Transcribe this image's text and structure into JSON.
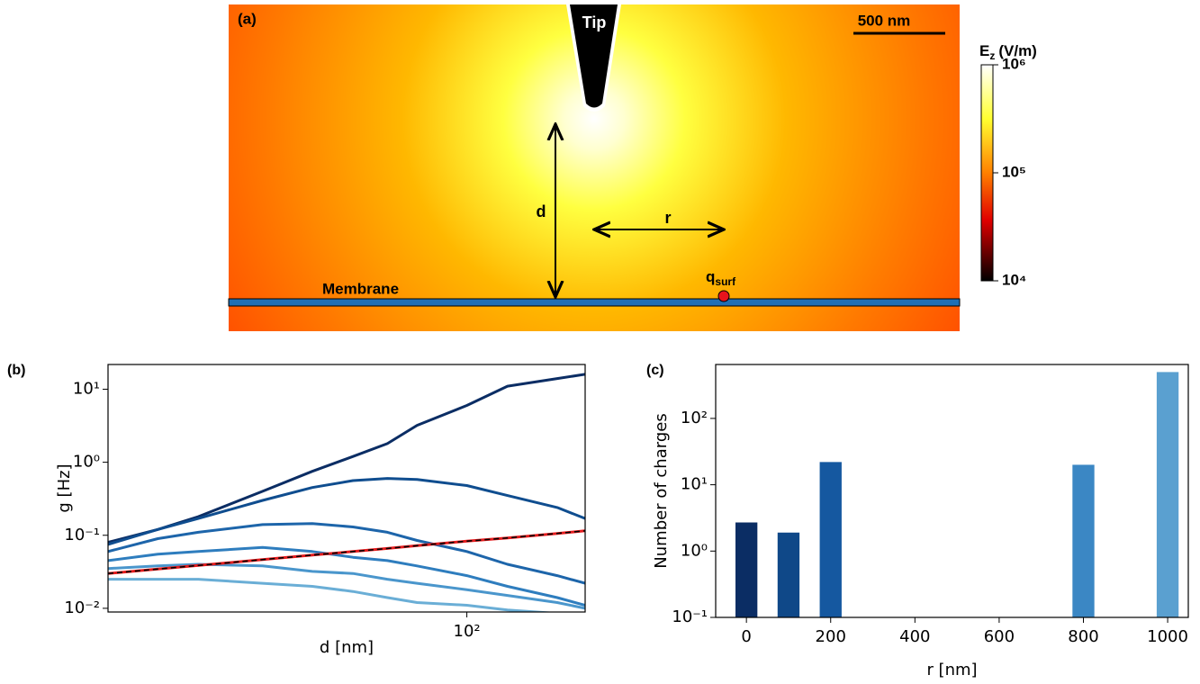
{
  "panel_a": {
    "label": "(a)",
    "scalebar": "500 nm",
    "tip": "Tip",
    "d": "d",
    "r": "r",
    "membrane": "Membrane",
    "charge": {
      "main": "q",
      "sub": "surf"
    },
    "colorbar": {
      "title_main": "E",
      "title_sub": "z",
      "title_unit": "(V/m)",
      "clim": [
        10000,
        1000000
      ],
      "ticks": [
        {
          "value": 1000000,
          "label": "10⁶"
        },
        {
          "value": 100000,
          "label": "10⁵"
        },
        {
          "value": 10000,
          "label": "10⁴"
        }
      ]
    }
  },
  "chart_data": [
    {
      "type": "line",
      "label": "(b)",
      "x_label": "d [nm]",
      "y_label": "g [Hz]",
      "xscale": "log",
      "yscale": "log",
      "x": [
        20,
        25,
        30,
        40,
        50,
        60,
        70,
        80,
        100,
        120,
        150,
        170
      ],
      "series": [
        {
          "color": "#0b2d64",
          "values": [
            0.08,
            0.12,
            0.18,
            0.4,
            0.75,
            1.2,
            1.8,
            3.2,
            6,
            11,
            14,
            16
          ]
        },
        {
          "color": "#0f4d8f",
          "values": [
            0.075,
            0.12,
            0.17,
            0.3,
            0.45,
            0.56,
            0.6,
            0.58,
            0.48,
            0.35,
            0.24,
            0.17
          ]
        },
        {
          "color": "#1d65aa",
          "values": [
            0.06,
            0.09,
            0.11,
            0.14,
            0.145,
            0.13,
            0.11,
            0.085,
            0.06,
            0.04,
            0.028,
            0.022
          ]
        },
        {
          "color": "#2e7dbe",
          "values": [
            0.045,
            0.055,
            0.06,
            0.068,
            0.06,
            0.05,
            0.045,
            0.038,
            0.028,
            0.02,
            0.014,
            0.011
          ]
        },
        {
          "color": "#4a96cc",
          "values": [
            0.035,
            0.038,
            0.04,
            0.038,
            0.032,
            0.03,
            0.025,
            0.022,
            0.018,
            0.015,
            0.012,
            0.01
          ]
        },
        {
          "color": "#6aaed6",
          "values": [
            0.025,
            0.025,
            0.025,
            0.022,
            0.02,
            0.017,
            0.014,
            0.012,
            0.011,
            0.0095,
            0.0085,
            0.008
          ]
        },
        {
          "color": "#e41a1c",
          "values": [
            0.03,
            0.0345,
            0.0386,
            0.0464,
            0.0535,
            0.06,
            0.066,
            0.072,
            0.083,
            0.092,
            0.106,
            0.115
          ]
        },
        {
          "color": "#000000",
          "dashed": true,
          "values": [
            0.03,
            0.0345,
            0.0386,
            0.0464,
            0.0535,
            0.06,
            0.066,
            0.072,
            0.083,
            0.092,
            0.106,
            0.115
          ]
        }
      ],
      "xlim": [
        20,
        170
      ],
      "ylim": [
        0.0089,
        21.8
      ],
      "xticks": [
        {
          "value": 100,
          "label": "10²"
        }
      ],
      "yticks": [
        {
          "value": 0.01,
          "label": "10⁻²"
        },
        {
          "value": 0.1,
          "label": "10⁻¹"
        },
        {
          "value": 1,
          "label": "10⁰"
        },
        {
          "value": 10,
          "label": "10¹"
        }
      ]
    },
    {
      "type": "bar",
      "label": "(c)",
      "x_label": "r [nm]",
      "y_label": "Number of charges",
      "yscale": "log",
      "x": [
        0,
        100,
        200,
        800,
        1000
      ],
      "values": [
        2.7,
        1.9,
        22,
        20,
        500
      ],
      "colors": [
        "#0b2d64",
        "#0f4888",
        "#1558a0",
        "#3b87c4",
        "#5aa0d0"
      ],
      "bar_width": 52,
      "xlim": [
        -73,
        1049
      ],
      "ylim": [
        0.1,
        650
      ],
      "xticks": [
        0,
        200,
        400,
        600,
        800,
        1000
      ],
      "yticks": [
        {
          "value": 0.1,
          "label": "10⁻¹"
        },
        {
          "value": 1,
          "label": "10⁰"
        },
        {
          "value": 10,
          "label": "10¹"
        },
        {
          "value": 100,
          "label": "10²"
        }
      ]
    }
  ]
}
